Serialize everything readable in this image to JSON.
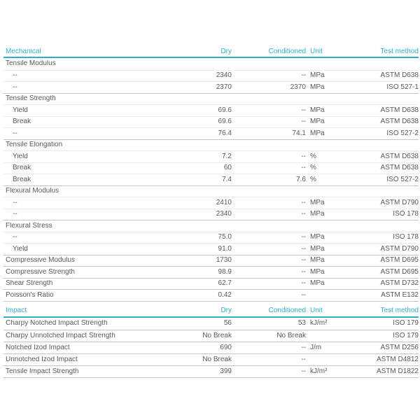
{
  "colors": {
    "accent": "#33AEC9",
    "text": "#58595B",
    "line_light": "#EBEBEB",
    "line_dark": "#C6C6C8",
    "background": "#FFFFFF"
  },
  "tables": [
    {
      "id": "mechanical",
      "headers": {
        "property": "Mechanical",
        "dry": "Dry",
        "conditioned": "Conditioned",
        "unit": "Unit",
        "method": "Test method"
      },
      "rows": [
        {
          "type": "group",
          "property": "Tensile Modulus",
          "dry": "",
          "conditioned": "",
          "unit": "",
          "method": ""
        },
        {
          "type": "sub",
          "property": "--",
          "dry": "2340",
          "conditioned": "--",
          "unit": "MPa",
          "method": "ASTM D638"
        },
        {
          "type": "sub",
          "property": "--",
          "dry": "2370",
          "conditioned": "2370",
          "unit": "MPa",
          "method": "ISO 527-1"
        },
        {
          "type": "group",
          "property": "Tensile Strength",
          "dry": "",
          "conditioned": "",
          "unit": "",
          "method": ""
        },
        {
          "type": "sub",
          "property": "Yield",
          "dry": "69.6",
          "conditioned": "--",
          "unit": "MPa",
          "method": "ASTM D638"
        },
        {
          "type": "sub",
          "property": "Break",
          "dry": "69.6",
          "conditioned": "--",
          "unit": "MPa",
          "method": "ASTM D638"
        },
        {
          "type": "sub",
          "property": "--",
          "dry": "76.4",
          "conditioned": "74.1",
          "unit": "MPa",
          "method": "ISO 527-2"
        },
        {
          "type": "group",
          "property": "Tensile Elongation",
          "dry": "",
          "conditioned": "",
          "unit": "",
          "method": ""
        },
        {
          "type": "sub",
          "property": "Yield",
          "dry": "7.2",
          "conditioned": "--",
          "unit": "%",
          "method": "ASTM D638"
        },
        {
          "type": "sub",
          "property": "Break",
          "dry": "60",
          "conditioned": "--",
          "unit": "%",
          "method": "ASTM D638"
        },
        {
          "type": "sub",
          "property": "Break",
          "dry": "7.4",
          "conditioned": "7.6",
          "unit": "%",
          "method": "ISO 527-2"
        },
        {
          "type": "group",
          "property": "Flexural Modulus",
          "dry": "",
          "conditioned": "",
          "unit": "",
          "method": ""
        },
        {
          "type": "sub",
          "property": "--",
          "dry": "2410",
          "conditioned": "--",
          "unit": "MPa",
          "method": "ASTM D790"
        },
        {
          "type": "sub",
          "property": "--",
          "dry": "2340",
          "conditioned": "--",
          "unit": "MPa",
          "method": "ISO 178"
        },
        {
          "type": "group",
          "property": "Flexural Stress",
          "dry": "",
          "conditioned": "",
          "unit": "",
          "method": ""
        },
        {
          "type": "sub",
          "property": "--",
          "dry": "75.0",
          "conditioned": "--",
          "unit": "MPa",
          "method": "ISO 178"
        },
        {
          "type": "sub",
          "property": "Yield",
          "dry": "91.0",
          "conditioned": "--",
          "unit": "MPa",
          "method": "ASTM D790"
        },
        {
          "type": "plain",
          "property": "Compressive Modulus",
          "dry": "1730",
          "conditioned": "--",
          "unit": "MPa",
          "method": "ASTM D695"
        },
        {
          "type": "plain",
          "property": "Compressive Strength",
          "dry": "98.9",
          "conditioned": "--",
          "unit": "MPa",
          "method": "ASTM D695"
        },
        {
          "type": "plain",
          "property": "Shear Strength",
          "dry": "62.7",
          "conditioned": "--",
          "unit": "MPa",
          "method": "ASTM D732"
        },
        {
          "type": "plain",
          "property": "Poisson's Ratio",
          "dry": "0.42",
          "conditioned": "--",
          "unit": "",
          "method": "ASTM E132"
        }
      ]
    },
    {
      "id": "impact",
      "headers": {
        "property": "Impact",
        "dry": "Dry",
        "conditioned": "Conditioned",
        "unit": "Unit",
        "method": "Test method"
      },
      "rows": [
        {
          "type": "plain",
          "property": "Charpy Notched Impact Strength",
          "dry": "56",
          "conditioned": "53",
          "unit": "kJ/m²",
          "method": "ISO 179"
        },
        {
          "type": "plain",
          "property": "Charpy Unnotched Impact Strength",
          "dry": "No Break",
          "conditioned": "No Break",
          "unit": "",
          "method": "ISO 179"
        },
        {
          "type": "plain",
          "property": "Notched Izod Impact",
          "dry": "690",
          "conditioned": "--",
          "unit": "J/m",
          "method": "ASTM D256"
        },
        {
          "type": "plain",
          "property": "Unnotched Izod Impact",
          "dry": "No Break",
          "conditioned": "--",
          "unit": "",
          "method": "ASTM D4812"
        },
        {
          "type": "plain",
          "property": "Tensile Impact Strength",
          "dry": "399",
          "conditioned": "--",
          "unit": "kJ/m²",
          "method": "ASTM D1822"
        }
      ]
    }
  ]
}
